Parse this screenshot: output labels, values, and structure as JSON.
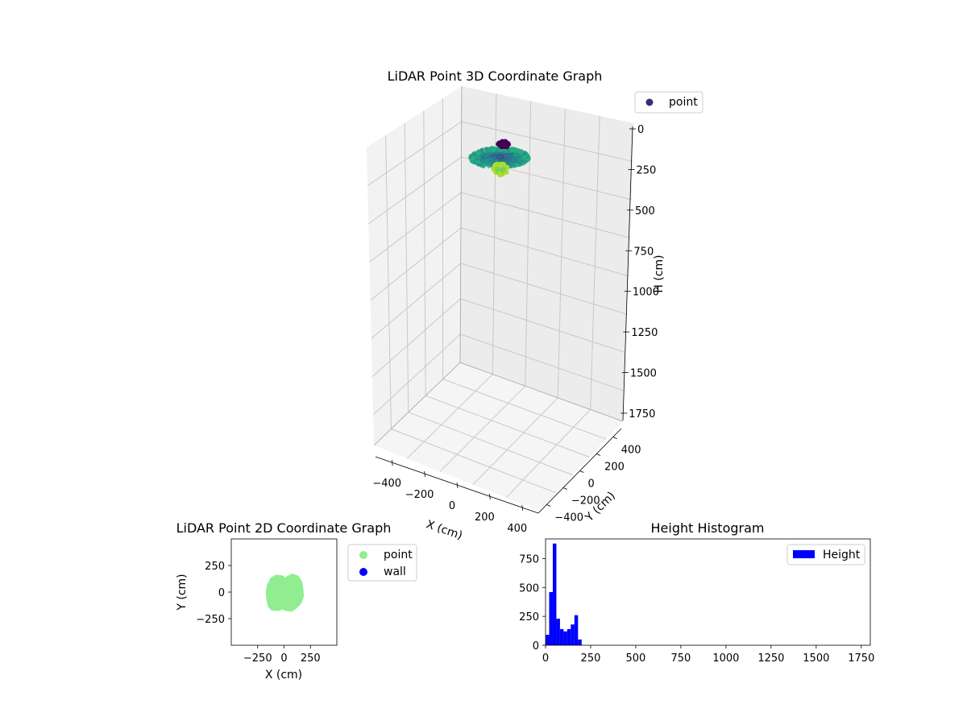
{
  "chart_data": [
    {
      "type": "scatter",
      "projection": "3d",
      "title": "LiDAR Point 3D Coordinate Graph",
      "xlabel": "X (cm)",
      "ylabel": "Y (cm)",
      "zlabel": "H (cm)",
      "x_ticks": [
        "−400",
        "−200",
        "0",
        "200",
        "400"
      ],
      "y_ticks": [
        "−400",
        "−200",
        "0",
        "200",
        "400"
      ],
      "z_ticks": [
        "0",
        "250",
        "500",
        "750",
        "1000",
        "1250",
        "1500",
        "1750"
      ],
      "xlim": [
        -500,
        500
      ],
      "ylim": [
        -500,
        500
      ],
      "zlim": [
        1800,
        0
      ],
      "z_inverted": true,
      "colormap": "viridis (colored by height)",
      "legend": [
        {
          "name": "point",
          "color": "#3b2a7a"
        }
      ],
      "legend_position": "top-right",
      "grid": true,
      "cluster": {
        "x_range": [
          -150,
          150
        ],
        "y_range": [
          -150,
          150
        ],
        "h_range": [
          0,
          210
        ]
      }
    },
    {
      "type": "scatter",
      "title": "LiDAR Point 2D Coordinate Graph",
      "xlabel": "X (cm)",
      "ylabel": "Y (cm)",
      "x_ticks": [
        "−250",
        "0",
        "250"
      ],
      "y_ticks": [
        "250",
        "0",
        "−250"
      ],
      "xlim": [
        -500,
        500
      ],
      "ylim": [
        -500,
        500
      ],
      "legend": [
        {
          "name": "point",
          "color": "#90ee90"
        },
        {
          "name": "wall",
          "color": "#0000ff"
        }
      ],
      "legend_position": "outside-right",
      "grid": false,
      "cluster_outline": [
        [
          -130,
          -130
        ],
        [
          -110,
          -150
        ],
        [
          -60,
          -155
        ],
        [
          -10,
          -140
        ],
        [
          20,
          -155
        ],
        [
          70,
          -160
        ],
        [
          110,
          -130
        ],
        [
          140,
          -100
        ],
        [
          165,
          -40
        ],
        [
          160,
          30
        ],
        [
          150,
          90
        ],
        [
          120,
          135
        ],
        [
          80,
          150
        ],
        [
          40,
          130
        ],
        [
          10,
          100
        ],
        [
          -20,
          135
        ],
        [
          -70,
          140
        ],
        [
          -110,
          120
        ],
        [
          -140,
          60
        ],
        [
          -150,
          0
        ],
        [
          -145,
          -70
        ]
      ]
    },
    {
      "type": "bar",
      "subtype": "histogram",
      "title": "Height Histogram",
      "xlabel": "",
      "ylabel": "",
      "x_ticks": [
        "0",
        "250",
        "500",
        "750",
        "1000",
        "1250",
        "1500",
        "1750"
      ],
      "y_ticks": [
        "0",
        "250",
        "500",
        "750"
      ],
      "xlim": [
        0,
        1800
      ],
      "ylim": [
        0,
        920
      ],
      "bin_width": 20,
      "series": [
        {
          "name": "Height",
          "color": "#0000ff",
          "bins": [
            {
              "x0": 0,
              "x1": 20,
              "count": 90
            },
            {
              "x0": 20,
              "x1": 40,
              "count": 460
            },
            {
              "x0": 40,
              "x1": 60,
              "count": 880
            },
            {
              "x0": 60,
              "x1": 80,
              "count": 230
            },
            {
              "x0": 80,
              "x1": 100,
              "count": 140
            },
            {
              "x0": 100,
              "x1": 120,
              "count": 120
            },
            {
              "x0": 120,
              "x1": 140,
              "count": 140
            },
            {
              "x0": 140,
              "x1": 160,
              "count": 180
            },
            {
              "x0": 160,
              "x1": 180,
              "count": 260
            },
            {
              "x0": 180,
              "x1": 200,
              "count": 50
            }
          ]
        }
      ],
      "legend": [
        {
          "name": "Height",
          "color": "#0000ff"
        }
      ],
      "legend_position": "top-right",
      "grid": false
    }
  ]
}
